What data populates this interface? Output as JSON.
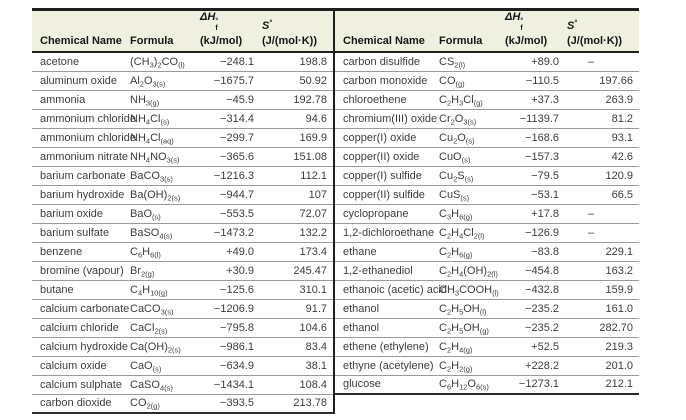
{
  "colors": {
    "header_bg": "#eff0e0",
    "border_dark": "#1f1f1f",
    "row_line": "#9a9a9a",
    "text": "#3d3d3d"
  },
  "header": {
    "col_name": "Chemical Name",
    "col_formula": "Formula",
    "dh_symbol": "ΔH",
    "dh_sup": "°",
    "dh_sub": "f",
    "dh_unit": "(kJ/mol)",
    "s_symbol": "S",
    "s_sup": "°",
    "s_unit": "(J/(mol·K))"
  },
  "tables": [
    {
      "rows": [
        {
          "name": "acetone",
          "formula": "(CH_{3})_{2}CO_{(l)}",
          "dh": "−248.1",
          "s": "198.8"
        },
        {
          "name": "aluminum oxide",
          "formula": "Al_{2}O_{3(s)}",
          "dh": "−1675.7",
          "s": "50.92"
        },
        {
          "name": "ammonia",
          "formula": "NH_{3(g)}",
          "dh": "−45.9",
          "s": "192.78"
        },
        {
          "name": "ammonium chloride",
          "formula": "NH_{4}Cl_{(s)}",
          "dh": "−314.4",
          "s": "94.6"
        },
        {
          "name": "ammonium chloride",
          "formula": "NH_{4}Cl_{(aq)}",
          "dh": "−299.7",
          "s": "169.9"
        },
        {
          "name": "ammonium nitrate",
          "formula": "NH_{4}NO_{3(s)}",
          "dh": "−365.6",
          "s": "151.08"
        },
        {
          "name": "barium carbonate",
          "formula": "BaCO_{3(s)}",
          "dh": "−1216.3",
          "s": "112.1"
        },
        {
          "name": "barium hydroxide",
          "formula": "Ba(OH)_{2(s)}",
          "dh": "−944.7",
          "s": "107"
        },
        {
          "name": "barium oxide",
          "formula": "BaO_{(s)}",
          "dh": "−553.5",
          "s": "72.07"
        },
        {
          "name": "barium sulfate",
          "formula": "BaSO_{4(s)}",
          "dh": "−1473.2",
          "s": "132.2"
        },
        {
          "name": "benzene",
          "formula": "C_{6}H_{6(l)}",
          "dh": "+49.0",
          "s": "173.4"
        },
        {
          "name": "bromine (vapour)",
          "formula": "Br_{2(g)}",
          "dh": "+30.9",
          "s": "245.47"
        },
        {
          "name": "butane",
          "formula": "C_{4}H_{10(g)}",
          "dh": "−125.6",
          "s": "310.1"
        },
        {
          "name": "calcium carbonate",
          "formula": "CaCO_{3(s)}",
          "dh": "−1206.9",
          "s": "91.7"
        },
        {
          "name": "calcium chloride",
          "formula": "CaCl_{2(s)}",
          "dh": "−795.8",
          "s": "104.6"
        },
        {
          "name": "calcium hydroxide",
          "formula": "Ca(OH)_{2(s)}",
          "dh": "−986.1",
          "s": "83.4"
        },
        {
          "name": "calcium oxide",
          "formula": "CaO_{(s)}",
          "dh": "−634.9",
          "s": "38.1"
        },
        {
          "name": "calcium sulphate",
          "formula": "CaSO_{4(s)}",
          "dh": "−1434.1",
          "s": "108.4"
        },
        {
          "name": "carbon dioxide",
          "formula": "CO_{2(g)}",
          "dh": "−393.5",
          "s": "213.78"
        }
      ]
    },
    {
      "rows": [
        {
          "name": "carbon disulfide",
          "formula": "CS_{2(l)}",
          "dh": "+89.0",
          "s": "–"
        },
        {
          "name": "carbon monoxide",
          "formula": "CO_{(g)}",
          "dh": "−110.5",
          "s": "197.66"
        },
        {
          "name": "chloroethene",
          "formula": "C_{2}H_{3}Cl_{(g)}",
          "dh": "+37.3",
          "s": "263.9"
        },
        {
          "name": "chromium(III) oxide",
          "formula": "Cr_{2}O_{3(s)}",
          "dh": "−1139.7",
          "s": "81.2"
        },
        {
          "name": "copper(I) oxide",
          "formula": "Cu_{2}O_{(s)}",
          "dh": "−168.6",
          "s": "93.1"
        },
        {
          "name": "copper(II) oxide",
          "formula": "CuO_{(s)}",
          "dh": "−157.3",
          "s": "42.6"
        },
        {
          "name": "copper(I) sulfide",
          "formula": "Cu_{2}S_{(s)}",
          "dh": "−79.5",
          "s": "120.9"
        },
        {
          "name": "copper(II) sulfide",
          "formula": "CuS_{(s)}",
          "dh": "−53.1",
          "s": "66.5"
        },
        {
          "name": "cyclopropane",
          "formula": "C_{3}H_{6(g)}",
          "dh": "+17.8",
          "s": "–"
        },
        {
          "name": "1,2-dichloroethane",
          "formula": "C_{2}H_{4}Cl_{2(l)}",
          "dh": "−126.9",
          "s": "–"
        },
        {
          "name": "ethane",
          "formula": "C_{2}H_{6(g)}",
          "dh": "−83.8",
          "s": "229.1"
        },
        {
          "name": "1,2-ethanediol",
          "formula": "C_{2}H_{4}(OH)_{2(l)}",
          "dh": "−454.8",
          "s": "163.2"
        },
        {
          "name": "ethanoic (acetic) acid",
          "formula": "CH_{3}COOH_{(l)}",
          "dh": "−432.8",
          "s": "159.9"
        },
        {
          "name": "ethanol",
          "formula": "C_{2}H_{5}OH_{(l)}",
          "dh": "−235.2",
          "s": "161.0"
        },
        {
          "name": "ethanol",
          "formula": "C_{2}H_{5}OH_{(g)}",
          "dh": "−235.2",
          "s": "282.70"
        },
        {
          "name": "ethene (ethylene)",
          "formula": "C_{2}H_{4(g)}",
          "dh": "+52.5",
          "s": "219.3"
        },
        {
          "name": "ethyne (acetylene)",
          "formula": "C_{2}H_{2(g)}",
          "dh": "+228.2",
          "s": "201.0"
        },
        {
          "name": "glucose",
          "formula": "C_{6}H_{12}O_{6(s)}",
          "dh": "−1273.1",
          "s": "212.1"
        }
      ]
    }
  ]
}
